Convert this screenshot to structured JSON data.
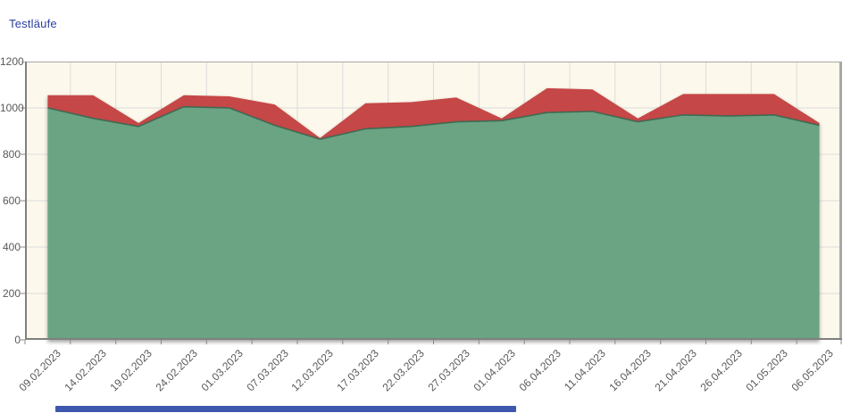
{
  "title": "Testläufe",
  "colors": {
    "title": "#2B3F9E",
    "plot_background": "#FCF8EB",
    "grid": "#DCDCDC",
    "axis": "#7F7F7F",
    "border": "#A8A8A8",
    "tick": "#8A8A8A",
    "label": "#595959",
    "green_area": "#6BA483",
    "green_edge": "#3F6B54",
    "red_area": "#C64646",
    "scrollbar": "#3E58AE"
  },
  "chart_data": {
    "type": "area",
    "stacked": true,
    "title": "Testläufe",
    "categories": [
      "09.02.2023",
      "14.02.2023",
      "19.02.2023",
      "24.02.2023",
      "01.03.2023",
      "07.03.2023",
      "12.03.2023",
      "17.03.2023",
      "22.03.2023",
      "27.03.2023",
      "01.04.2023",
      "06.04.2023",
      "11.04.2023",
      "16.04.2023",
      "21.04.2023",
      "26.04.2023",
      "01.05.2023",
      "06.05.2023"
    ],
    "series": [
      {
        "name": "lower-green-area",
        "color": "#6BA483",
        "values": [
          1000,
          955,
          920,
          1005,
          1000,
          925,
          865,
          910,
          920,
          940,
          945,
          980,
          985,
          940,
          970,
          965,
          970,
          925
        ]
      },
      {
        "name": "upper-red-band-top",
        "color": "#C64646",
        "values": [
          1055,
          1055,
          935,
          1055,
          1050,
          1015,
          870,
          1020,
          1025,
          1045,
          955,
          1085,
          1080,
          955,
          1060,
          1060,
          1060,
          935
        ]
      }
    ],
    "xlabel": "",
    "ylabel": "",
    "ylim": [
      0,
      1200
    ],
    "yticks": [
      0,
      200,
      400,
      600,
      800,
      1000,
      1200
    ],
    "grid": true,
    "legend": false
  }
}
